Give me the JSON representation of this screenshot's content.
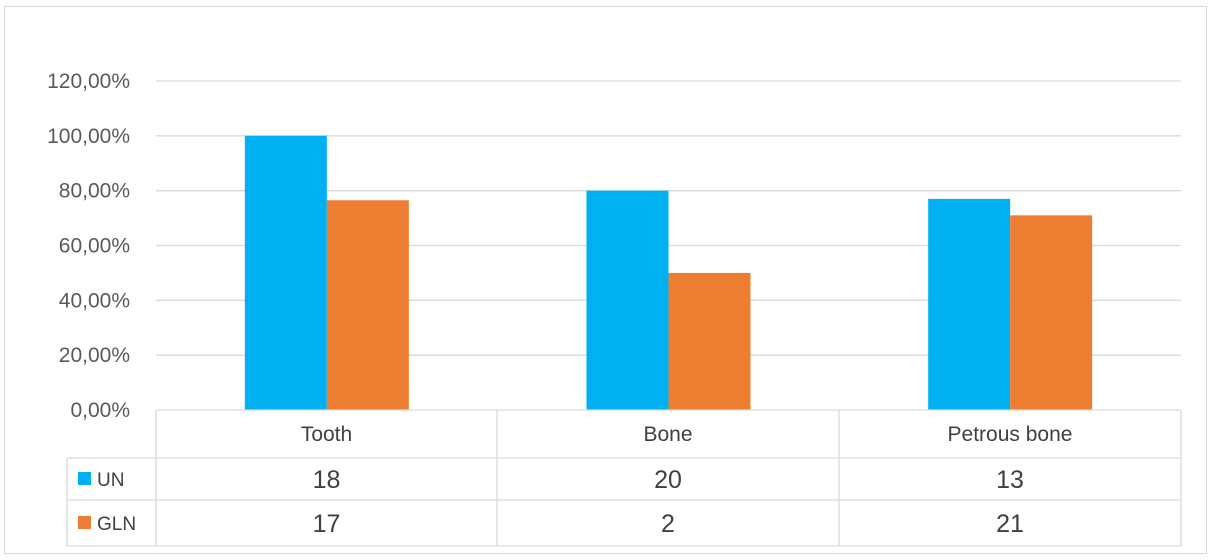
{
  "chart_data": {
    "type": "bar",
    "categories": [
      "Tooth",
      "Bone",
      "Petrous bone"
    ],
    "series": [
      {
        "name": "UN",
        "values": [
          1.0,
          0.8,
          0.77
        ],
        "color": "#00B0F0"
      },
      {
        "name": "GLN",
        "values": [
          0.765,
          0.5,
          0.71
        ],
        "color": "#ED7D31"
      }
    ],
    "ylim": [
      0,
      1.2
    ],
    "yticks": [
      0,
      0.2,
      0.4,
      0.6,
      0.8,
      1.0,
      1.2
    ],
    "ytick_labels": [
      "0,00%",
      "20,00%",
      "40,00%",
      "60,00%",
      "80,00%",
      "100,00%",
      "120,00%"
    ],
    "grid": true,
    "legend": "data-table",
    "data_table": [
      {
        "series": "UN",
        "values": [
          "18",
          "20",
          "13"
        ]
      },
      {
        "series": "GLN",
        "values": [
          "17",
          "2",
          "21"
        ]
      }
    ]
  }
}
